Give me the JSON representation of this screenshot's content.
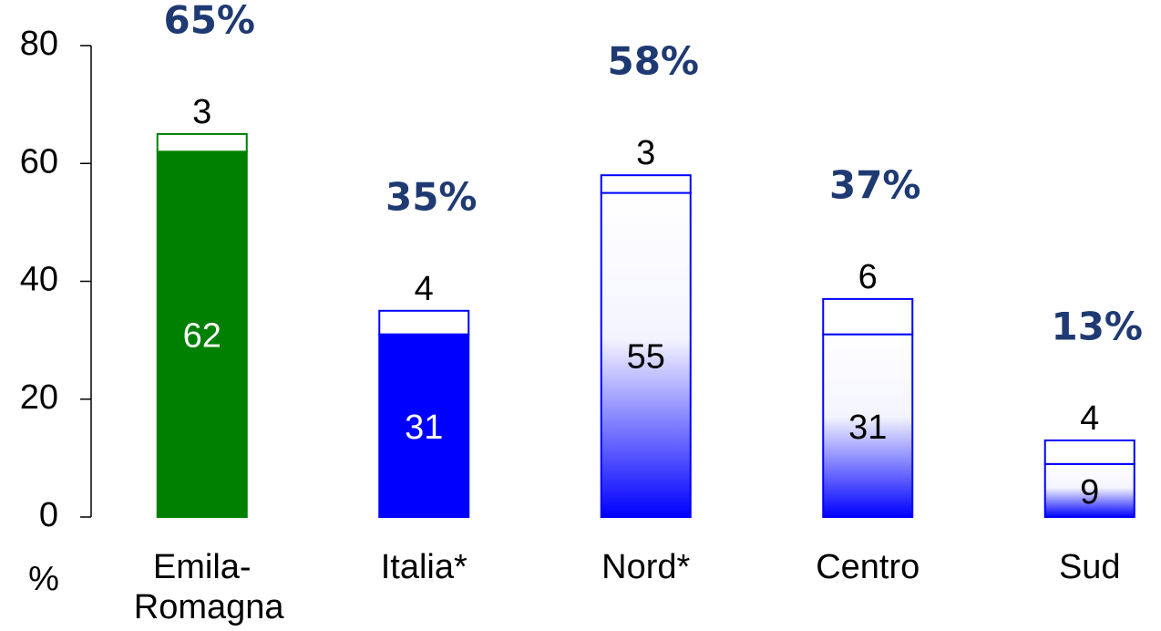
{
  "chart_data": {
    "type": "stacked_bar",
    "categories": [
      "Emila-Romagna",
      "Italia*",
      "Nord*",
      "Centro",
      "Sud"
    ],
    "series": [
      {
        "values": [
          62,
          31,
          55,
          31,
          9
        ],
        "colors": [
          "#008000",
          "#0000ff",
          "#0000ff",
          "#0000ff",
          "#0000ff"
        ],
        "gradient": [
          false,
          false,
          true,
          true,
          true
        ]
      },
      {
        "values": [
          3,
          4,
          3,
          6,
          4
        ],
        "colors": [
          "#008000",
          "#0000ff",
          "#0000ff",
          "#0000ff",
          "#0000ff"
        ],
        "fill": "#ffffff"
      }
    ],
    "totals": {
      "values": [
        65,
        35,
        58,
        37,
        13
      ],
      "value_labels": [
        "65%",
        "35%",
        "58%",
        "37%",
        "13%"
      ],
      "color": "#1f3a73"
    },
    "ylabel": "%",
    "ylim": [
      0,
      80
    ],
    "yticks": [
      0,
      20,
      40,
      60,
      80
    ]
  }
}
